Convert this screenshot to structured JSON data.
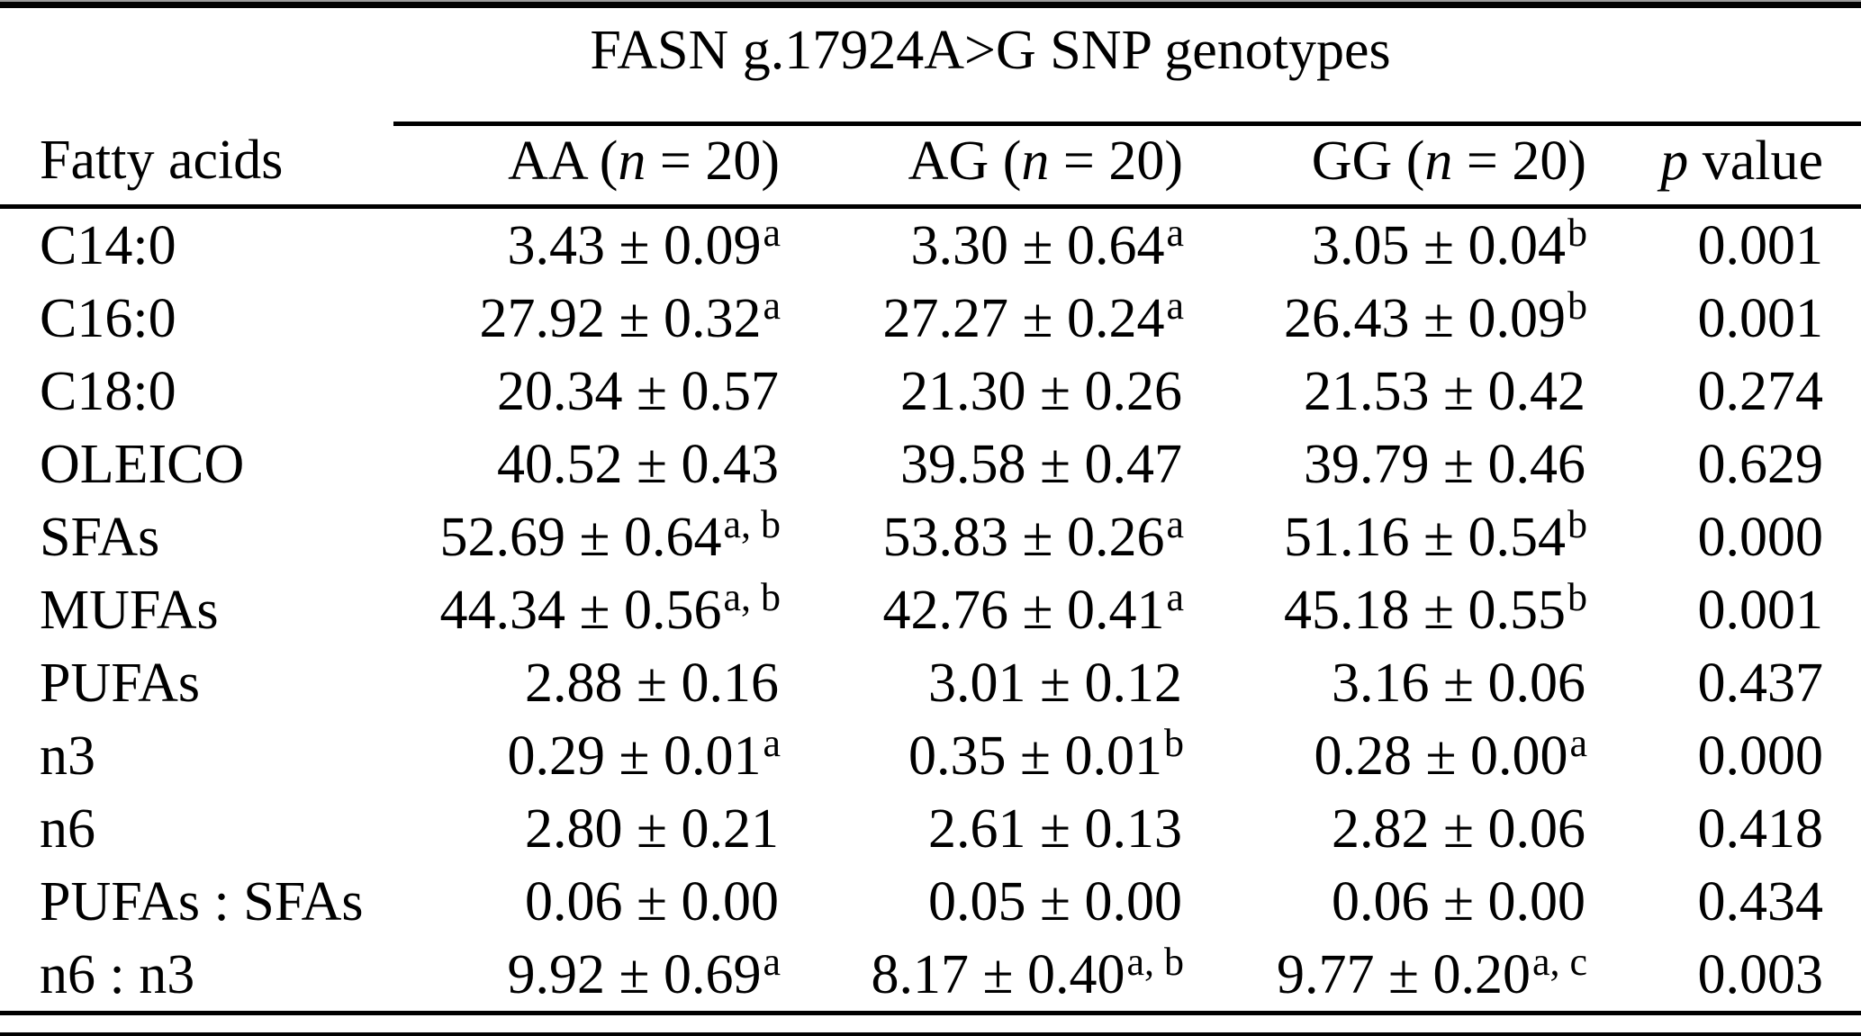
{
  "table": {
    "spanner_header": "FASN g.17924A>G SNP genotypes",
    "columns": [
      {
        "label": "Fatty acids"
      },
      {
        "pre": "AA (",
        "italic": "n",
        "post": " = 20)"
      },
      {
        "pre": "AG (",
        "italic": "n",
        "post": " = 20)"
      },
      {
        "pre": "GG (",
        "italic": "n",
        "post": " = 20)"
      },
      {
        "pre": "",
        "italic": "p",
        "post": " value"
      }
    ],
    "rows": [
      {
        "fatty_acid": "C14:0",
        "aa": "3.43 ± 0.09",
        "aa_sup": "a",
        "ag": "3.30 ± 0.64",
        "ag_sup": "a",
        "gg": "3.05 ± 0.04",
        "gg_sup": "b",
        "p": "0.001"
      },
      {
        "fatty_acid": "C16:0",
        "aa": "27.92 ± 0.32",
        "aa_sup": "a",
        "ag": "27.27 ± 0.24",
        "ag_sup": "a",
        "gg": "26.43 ± 0.09",
        "gg_sup": "b",
        "p": "0.001"
      },
      {
        "fatty_acid": "C18:0",
        "aa": "20.34 ± 0.57",
        "aa_sup": "",
        "ag": "21.30 ± 0.26",
        "ag_sup": "",
        "gg": "21.53 ± 0.42",
        "gg_sup": "",
        "p": "0.274"
      },
      {
        "fatty_acid": "OLEICO",
        "aa": "40.52 ± 0.43",
        "aa_sup": "",
        "ag": "39.58 ± 0.47",
        "ag_sup": "",
        "gg": "39.79 ± 0.46",
        "gg_sup": "",
        "p": "0.629"
      },
      {
        "fatty_acid": "SFAs",
        "aa": "52.69 ± 0.64",
        "aa_sup": "a, b",
        "ag": "53.83 ± 0.26",
        "ag_sup": "a",
        "gg": "51.16 ± 0.54",
        "gg_sup": "b",
        "p": "0.000"
      },
      {
        "fatty_acid": "MUFAs",
        "aa": "44.34 ± 0.56",
        "aa_sup": "a, b",
        "ag": "42.76 ± 0.41",
        "ag_sup": "a",
        "gg": "45.18 ± 0.55",
        "gg_sup": "b",
        "p": "0.001"
      },
      {
        "fatty_acid": "PUFAs",
        "aa": "2.88 ± 0.16",
        "aa_sup": "",
        "ag": "3.01 ± 0.12",
        "ag_sup": "",
        "gg": "3.16 ± 0.06",
        "gg_sup": "",
        "p": "0.437"
      },
      {
        "fatty_acid": "n3",
        "aa": "0.29 ± 0.01",
        "aa_sup": "a",
        "ag": "0.35 ± 0.01",
        "ag_sup": "b",
        "gg": "0.28 ± 0.00",
        "gg_sup": "a",
        "p": "0.000"
      },
      {
        "fatty_acid": "n6",
        "aa": "2.80 ± 0.21",
        "aa_sup": "",
        "ag": "2.61 ± 0.13",
        "ag_sup": "",
        "gg": "2.82 ± 0.06",
        "gg_sup": "",
        "p": "0.418"
      },
      {
        "fatty_acid": "PUFAs : SFAs",
        "aa": "0.06 ± 0.00",
        "aa_sup": "",
        "ag": "0.05 ± 0.00",
        "ag_sup": "",
        "gg": "0.06 ± 0.00",
        "gg_sup": "",
        "p": "0.434"
      },
      {
        "fatty_acid": "n6 : n3",
        "aa": "9.92 ± 0.69",
        "aa_sup": "a",
        "ag": "8.17 ± 0.40",
        "ag_sup": "a, b",
        "gg": "9.77 ± 0.20",
        "gg_sup": "a, c",
        "p": "0.003"
      }
    ]
  }
}
